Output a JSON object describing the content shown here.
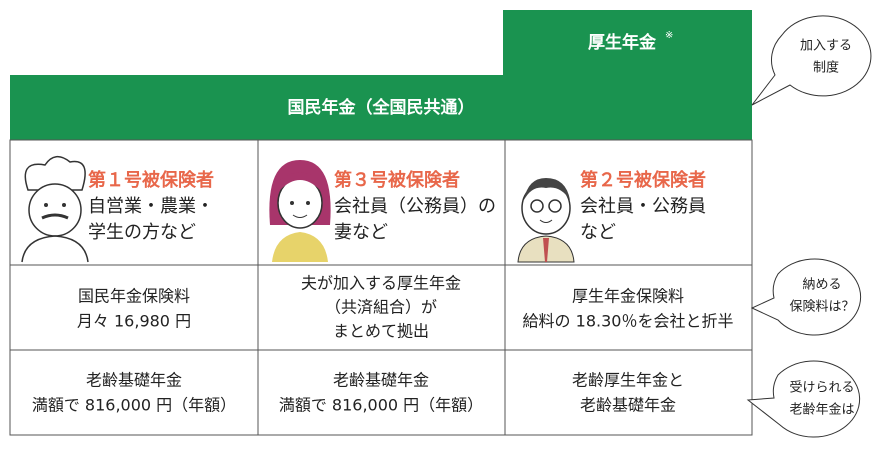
{
  "header": {
    "kosei": "厚生年金",
    "kosei_note": "※",
    "kokumin": "国民年金（全国民共通）"
  },
  "columns": [
    {
      "type": "第１号被保険者",
      "desc": [
        "自営業・農業・",
        "学生の方など"
      ],
      "premium": [
        "国民年金保険料",
        "月々 16,980 円"
      ],
      "benefit": [
        "老齢基礎年金",
        "満額で 816,000 円（年額）"
      ]
    },
    {
      "type": "第３号被保険者",
      "desc": [
        "会社員（公務員）の",
        "妻など"
      ],
      "premium": [
        "夫が加入する厚生年金",
        "（共済組合）が",
        "まとめて拠出"
      ],
      "benefit": [
        "老齢基礎年金",
        "満額で 816,000 円（年額）"
      ]
    },
    {
      "type": "第２号被保険者",
      "desc": [
        "会社員・公務員",
        "など"
      ],
      "premium": [
        "厚生年金保険料",
        "給料の 18.30％を会社と折半"
      ],
      "benefit": [
        "老齢厚生年金と",
        "老齢基礎年金"
      ]
    }
  ],
  "callouts": [
    [
      "加入する",
      "制度"
    ],
    [
      "納める",
      "保険料は？"
    ],
    [
      "受けられる",
      "老齢年金は"
    ]
  ]
}
